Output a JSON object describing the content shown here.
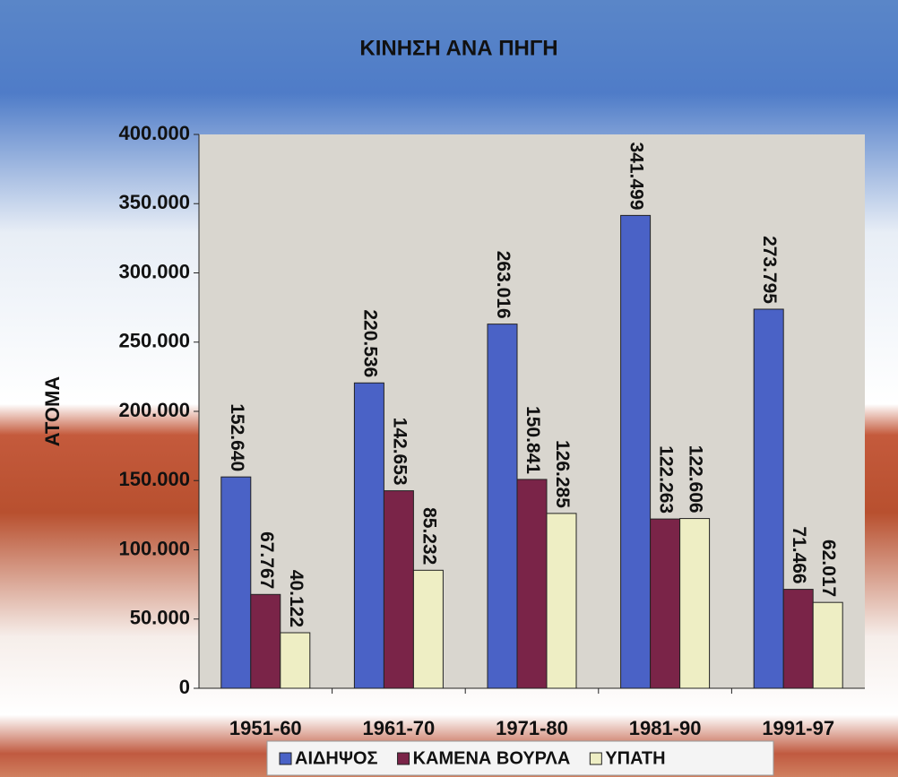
{
  "chart_data": {
    "type": "bar",
    "title": "ΚΙΝΗΣΗ ΑΝΑ ΠΗΓΗ",
    "ylabel": "ΑΤΟΜΑ",
    "categories": [
      "1951-60",
      "1961-70",
      "1971-80",
      "1981-90",
      "1991-97"
    ],
    "series": [
      {
        "name": "ΑΙΔΗΨΟΣ",
        "color": "#4a62c6",
        "values": [
          152640,
          220536,
          263016,
          341499,
          273795
        ],
        "value_labels": [
          "152.640",
          "220.536",
          "263.016",
          "341.499",
          "273.795"
        ]
      },
      {
        "name": "ΚΑΜΕΝΑ ΒΟΥΡΛΑ",
        "color": "#7a2448",
        "values": [
          67767,
          142653,
          150841,
          122263,
          71466
        ],
        "value_labels": [
          "67.767",
          "142.653",
          "150.841",
          "122.263",
          "71.466"
        ]
      },
      {
        "name": "ΥΠΑΤΗ",
        "color": "#eeeec4",
        "values": [
          40122,
          85232,
          126285,
          122606,
          62017
        ],
        "value_labels": [
          "40.122",
          "85.232",
          "126.285",
          "122.606",
          "62.017"
        ]
      }
    ],
    "ylim": [
      0,
      400000
    ],
    "yticks": [
      0,
      {
        "value": 50000,
        "label": "50.000"
      },
      {
        "value": 100000,
        "label": "100.000"
      },
      {
        "value": 150000,
        "label": "150.000"
      },
      {
        "value": 200000,
        "label": "200.000"
      },
      {
        "value": 250000,
        "label": "250.000"
      },
      {
        "value": 300000,
        "label": "300.000"
      },
      {
        "value": 350000,
        "label": "350.000"
      },
      {
        "value": 400000,
        "label": "400.000"
      }
    ],
    "legend": "bottom"
  }
}
